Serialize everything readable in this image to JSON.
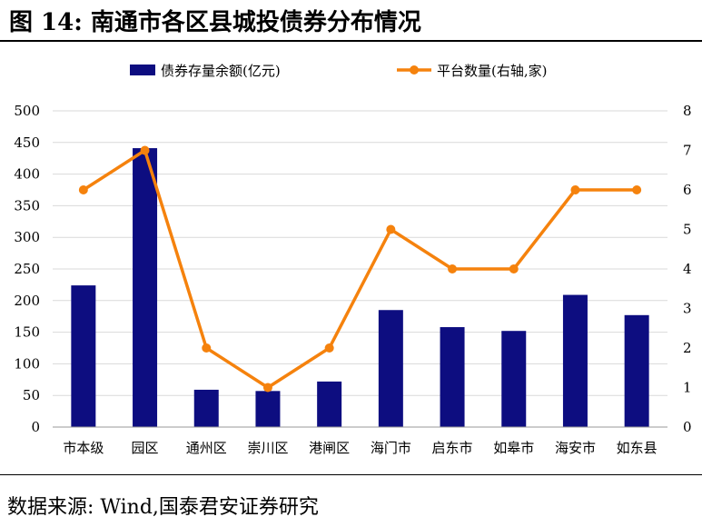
{
  "title": "图 14:  南通市各区县城投债券分布情况",
  "source": "数据来源:  Wind,国泰君安证券研究",
  "colors": {
    "bar": "#0d0d80",
    "line": "#f5820d",
    "grid": "#d9d9d9",
    "axis": "#999999"
  },
  "chart_data": {
    "type": "bar",
    "categories": [
      "市本级",
      "园区",
      "通州区",
      "崇川区",
      "港闸区",
      "海门市",
      "启东市",
      "如皋市",
      "海安市",
      "如东县"
    ],
    "series": [
      {
        "name": "债券存量余额(亿元)",
        "type": "bar",
        "axis": "left",
        "values": [
          224,
          441,
          59,
          57,
          72,
          185,
          158,
          152,
          209,
          177
        ]
      },
      {
        "name": "平台数量(右轴,家)",
        "type": "line",
        "axis": "right",
        "values": [
          6,
          7,
          2,
          1,
          2,
          5,
          4,
          4,
          6,
          6
        ]
      }
    ],
    "ylim": [
      0,
      500
    ],
    "y2lim": [
      0,
      8
    ],
    "yticks": [
      "0",
      "50",
      "100",
      "150",
      "200",
      "250",
      "300",
      "350",
      "400",
      "450",
      "500"
    ],
    "y2ticks": [
      "0",
      "1",
      "2",
      "3",
      "4",
      "5",
      "6",
      "7",
      "8"
    ],
    "grid": true,
    "legend_position": "top-center"
  }
}
